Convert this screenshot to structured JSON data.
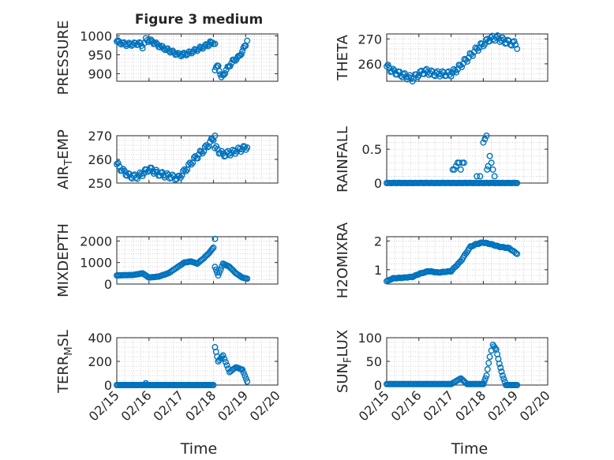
{
  "title": "Figure 3 medium",
  "colors": {
    "marker": "#0072BD",
    "axis": "#262626",
    "grid": "#c8c8c8"
  },
  "xaxis": {
    "label": "Time",
    "ticks": [
      "02/15",
      "02/16",
      "02/17",
      "02/18",
      "02/19",
      "02/20"
    ],
    "range_days": [
      0,
      5
    ]
  },
  "chart_data": [
    {
      "type": "scatter",
      "ylabel": "PRESSURE",
      "ylim": [
        880,
        1005
      ],
      "yticks": [
        900,
        950,
        1000
      ],
      "grid": "minor-dotted",
      "anchors": [
        [
          0,
          985
        ],
        [
          0.1,
          982
        ],
        [
          0.3,
          977
        ],
        [
          0.5,
          978
        ],
        [
          0.7,
          980
        ],
        [
          0.8,
          971
        ],
        [
          0.9,
          990
        ],
        [
          1.1,
          985
        ],
        [
          1.3,
          974
        ],
        [
          1.5,
          966
        ],
        [
          1.7,
          958
        ],
        [
          1.9,
          951
        ],
        [
          2.0,
          950
        ],
        [
          2.2,
          953
        ],
        [
          2.5,
          964
        ],
        [
          2.8,
          975
        ],
        [
          3.0,
          982
        ],
        [
          3.05,
          979
        ]
      ],
      "anchors2": [
        [
          3.05,
          910
        ],
        [
          3.15,
          922
        ],
        [
          3.25,
          888
        ],
        [
          3.4,
          910
        ],
        [
          3.6,
          933
        ],
        [
          3.8,
          945
        ],
        [
          3.9,
          960
        ],
        [
          4.0,
          975
        ],
        [
          4.05,
          987
        ]
      ],
      "extra": [
        [
          2.9,
          985
        ]
      ]
    },
    {
      "type": "scatter",
      "ylabel": "THETA",
      "ylim": [
        253,
        272
      ],
      "yticks": [
        260,
        270
      ],
      "grid": "minor-dotted",
      "anchors": [
        [
          0,
          259
        ],
        [
          0.2,
          257
        ],
        [
          0.4,
          256
        ],
        [
          0.6,
          255
        ],
        [
          0.8,
          254
        ],
        [
          1.0,
          256
        ],
        [
          1.2,
          257
        ],
        [
          1.5,
          256
        ],
        [
          2.0,
          256
        ],
        [
          2.2,
          258
        ],
        [
          2.5,
          262
        ],
        [
          2.8,
          266
        ],
        [
          3.0,
          268
        ],
        [
          3.2,
          270
        ],
        [
          3.4,
          270.5
        ],
        [
          3.6,
          269.5
        ],
        [
          3.8,
          268.5
        ],
        [
          4.0,
          268
        ],
        [
          4.05,
          266
        ]
      ],
      "anchors2": [],
      "extra": []
    },
    {
      "type": "scatter",
      "ylabel": "AIR_TEMP",
      "ylim": [
        250,
        270
      ],
      "yticks": [
        250,
        260,
        270
      ],
      "grid": "minor-dotted",
      "anchors": [
        [
          0,
          258
        ],
        [
          0.2,
          255
        ],
        [
          0.4,
          253
        ],
        [
          0.6,
          252.5
        ],
        [
          0.8,
          254
        ],
        [
          1.0,
          256
        ],
        [
          1.3,
          254
        ],
        [
          1.6,
          253
        ],
        [
          1.9,
          252
        ],
        [
          2.1,
          255
        ],
        [
          2.4,
          260
        ],
        [
          2.7,
          264
        ],
        [
          2.9,
          267
        ],
        [
          3.0,
          269
        ],
        [
          3.05,
          270
        ]
      ],
      "anchors2": [
        [
          3.05,
          265
        ],
        [
          3.3,
          262
        ],
        [
          3.6,
          263
        ],
        [
          3.9,
          264.5
        ],
        [
          4.05,
          265
        ]
      ],
      "extra": []
    },
    {
      "type": "scatter",
      "ylabel": "RAINFALL",
      "ylim": [
        0,
        0.7
      ],
      "yticks": [
        0,
        0.5
      ],
      "grid": "minor-dotted",
      "anchors": [
        [
          0,
          0
        ],
        [
          4.05,
          0
        ]
      ],
      "anchors2": [],
      "extra": [
        [
          2.05,
          0.2
        ],
        [
          2.1,
          0.2
        ],
        [
          2.15,
          0.25
        ],
        [
          2.2,
          0.3
        ],
        [
          2.25,
          0.3
        ],
        [
          2.3,
          0.2
        ],
        [
          2.35,
          0.3
        ],
        [
          2.4,
          0.3
        ],
        [
          2.8,
          0.1
        ],
        [
          2.9,
          0.1
        ],
        [
          3.0,
          0.6
        ],
        [
          3.05,
          0.65
        ],
        [
          3.1,
          0.7
        ],
        [
          3.12,
          0.2
        ],
        [
          3.15,
          0.25
        ],
        [
          3.2,
          0.4
        ],
        [
          3.25,
          0.3
        ],
        [
          3.3,
          0.2
        ],
        [
          3.35,
          0.1
        ]
      ]
    },
    {
      "type": "scatter",
      "ylabel": "MIXDEPTH",
      "ylim": [
        0,
        2200
      ],
      "yticks": [
        0,
        1000,
        2000
      ],
      "grid": "minor-dotted",
      "anchors": [
        [
          0,
          400
        ],
        [
          0.5,
          420
        ],
        [
          0.8,
          500
        ],
        [
          1.0,
          300
        ],
        [
          1.3,
          350
        ],
        [
          1.6,
          500
        ],
        [
          1.9,
          800
        ],
        [
          2.1,
          1000
        ],
        [
          2.3,
          1050
        ],
        [
          2.5,
          950
        ],
        [
          2.7,
          1200
        ],
        [
          2.9,
          1500
        ],
        [
          3.0,
          1700
        ],
        [
          3.05,
          2100
        ]
      ],
      "anchors2": [
        [
          3.05,
          800
        ],
        [
          3.15,
          400
        ],
        [
          3.3,
          950
        ],
        [
          3.5,
          800
        ],
        [
          3.7,
          500
        ],
        [
          3.9,
          300
        ],
        [
          4.05,
          250
        ]
      ],
      "extra": []
    },
    {
      "type": "scatter",
      "ylabel": "H2OMIXRA",
      "ylim": [
        0.5,
        2.15
      ],
      "yticks": [
        1,
        2
      ],
      "grid": "minor-dotted",
      "anchors": [
        [
          0,
          0.6
        ],
        [
          0.2,
          0.7
        ],
        [
          0.5,
          0.72
        ],
        [
          0.8,
          0.75
        ],
        [
          1.0,
          0.85
        ],
        [
          1.3,
          0.95
        ],
        [
          1.6,
          0.9
        ],
        [
          2.0,
          0.95
        ],
        [
          2.3,
          1.3
        ],
        [
          2.6,
          1.8
        ],
        [
          2.8,
          1.9
        ],
        [
          3.0,
          1.95
        ],
        [
          3.2,
          1.9
        ],
        [
          3.5,
          1.8
        ],
        [
          3.8,
          1.75
        ],
        [
          4.05,
          1.55
        ]
      ],
      "anchors2": [],
      "extra": []
    },
    {
      "type": "scatter",
      "ylabel": "TERR_MSL",
      "ylim": [
        0,
        400
      ],
      "yticks": [
        0,
        200,
        400
      ],
      "grid": "minor-dotted",
      "anchors": [
        [
          0,
          0
        ],
        [
          3.0,
          0
        ]
      ],
      "anchors2": [
        [
          3.05,
          320
        ],
        [
          3.15,
          200
        ],
        [
          3.3,
          250
        ],
        [
          3.5,
          110
        ],
        [
          3.7,
          150
        ],
        [
          3.9,
          130
        ],
        [
          4.05,
          30
        ]
      ],
      "extra": [
        [
          0.9,
          15
        ]
      ]
    },
    {
      "type": "scatter",
      "ylabel": "SUN_FLUX",
      "ylim": [
        0,
        100
      ],
      "yticks": [
        0,
        50,
        100
      ],
      "grid": "minor-dotted",
      "anchors": [
        [
          0,
          2
        ],
        [
          2.0,
          2
        ],
        [
          2.3,
          14
        ],
        [
          2.5,
          2
        ],
        [
          3.0,
          2
        ]
      ],
      "anchors2": [
        [
          3.0,
          2
        ],
        [
          3.1,
          20
        ],
        [
          3.2,
          60
        ],
        [
          3.3,
          85
        ],
        [
          3.4,
          75
        ],
        [
          3.5,
          45
        ],
        [
          3.6,
          20
        ],
        [
          3.7,
          0
        ],
        [
          4.05,
          0
        ]
      ],
      "extra": []
    }
  ]
}
